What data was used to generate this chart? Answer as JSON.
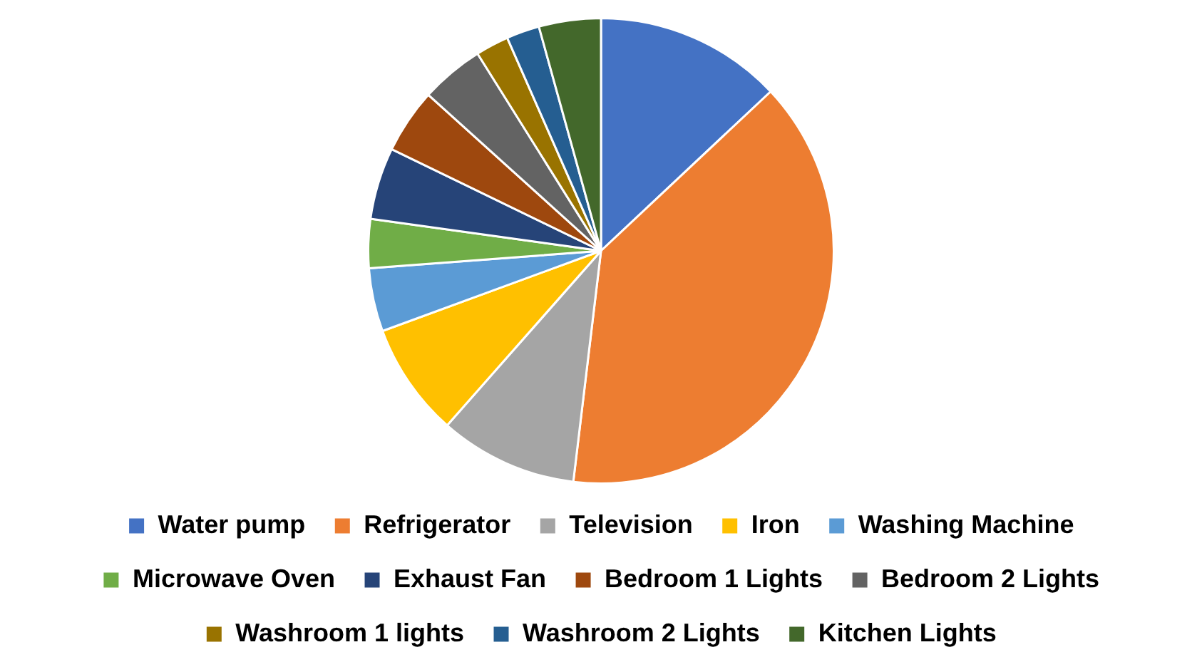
{
  "chart_data": {
    "type": "pie",
    "categories": [
      "Water pump",
      "Refrigerator",
      "Television",
      "Iron",
      "Washing Machine",
      "Microwave Oven",
      "Exhaust Fan",
      "Bedroom 1 Lights",
      "Bedroom 2 Lights",
      "Washroom 1 lights",
      "Washroom 2 Lights",
      "Kitchen Lights"
    ],
    "values": [
      13,
      38.9,
      9.6,
      7.9,
      4.4,
      3.4,
      5,
      4.5,
      4.4,
      2.3,
      2.3,
      4.3
    ],
    "colors": [
      "#4472c4",
      "#ed7d31",
      "#a5a5a5",
      "#ffc000",
      "#5b9bd5",
      "#70ad47",
      "#264478",
      "#9e480e",
      "#636363",
      "#997300",
      "#255e91",
      "#43682b"
    ],
    "legend": "bottom"
  }
}
